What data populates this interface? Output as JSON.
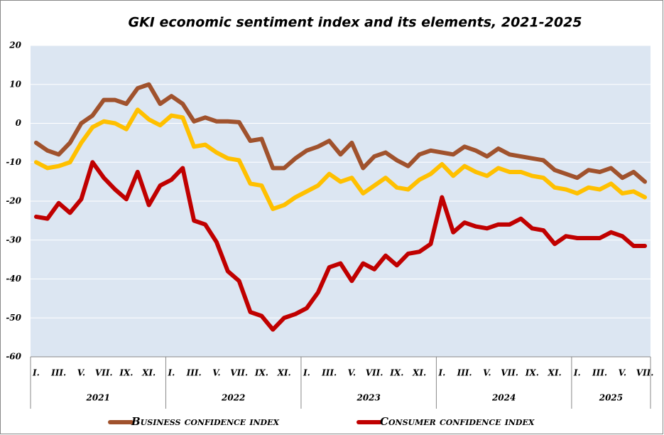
{
  "chart_data": {
    "type": "line",
    "title": "GKI economic sentiment index and its elements, 2021-2025",
    "categories": [
      "I.",
      null,
      "III.",
      null,
      "V.",
      null,
      "VII.",
      null,
      "IX.",
      null,
      "XI.",
      null,
      "I.",
      null,
      "III.",
      null,
      "V.",
      null,
      "VII.",
      null,
      "IX.",
      null,
      "XI.",
      null,
      "I.",
      null,
      "III.",
      null,
      "V.",
      null,
      "VII.",
      null,
      "IX.",
      null,
      "XI.",
      null,
      "I.",
      null,
      "III.",
      null,
      "V.",
      null,
      "VII.",
      null,
      "IX.",
      null,
      "XI.",
      null,
      "I.",
      null,
      "III.",
      null,
      "V.",
      null,
      "VII."
    ],
    "years": [
      "2021",
      "2022",
      "2023",
      "2024",
      "2025"
    ],
    "series": [
      {
        "name": "Business confidence index",
        "color": "#a0522d",
        "values": [
          -5,
          -7,
          -8,
          -5,
          0,
          2,
          6,
          6,
          5,
          9,
          10,
          5,
          7,
          5,
          0.5,
          1.5,
          0.5,
          0.5,
          0.3,
          -4.5,
          -4,
          -11.5,
          -11.5,
          -9,
          -7,
          -6,
          -4.5,
          -8,
          -5,
          -11.5,
          -8.5,
          -7.5,
          -9.5,
          -11,
          -8,
          -7,
          -7.5,
          -8,
          -6,
          -7,
          -8.5,
          -6.5,
          -8,
          -8.5,
          -9,
          -9.5,
          -12,
          -13,
          -14,
          -12,
          -12.5,
          -11.5,
          -14,
          -12.5,
          -15
        ]
      },
      {
        "color": "#ffc000",
        "values": [
          -10,
          -11.5,
          -11,
          -10,
          -5,
          -1,
          0.5,
          0,
          -1.5,
          3.5,
          1,
          -0.5,
          2,
          1.5,
          -6,
          -5.5,
          -7.5,
          -9,
          -9.5,
          -15.5,
          -16,
          -22,
          -21,
          -19,
          -17.5,
          -16,
          -13,
          -15,
          -14,
          -18,
          -16,
          -14,
          -16.5,
          -17,
          -14.5,
          -13,
          -10.5,
          -13.5,
          -11,
          -12.5,
          -13.5,
          -11.5,
          -12.5,
          -12.5,
          -13.5,
          -14,
          -16.5,
          -17,
          -18,
          -16.5,
          -17,
          -15.5,
          -18,
          -17.5,
          -19
        ]
      },
      {
        "name": "Consumer confidence index",
        "color": "#c00000",
        "values": [
          -24,
          -24.5,
          -20.5,
          -23,
          -19.5,
          -10,
          -14,
          -17,
          -19.5,
          -12.5,
          -21,
          -16,
          -14.5,
          -11.5,
          -25,
          -26,
          -30.5,
          -38,
          -40.5,
          -48.5,
          -49.5,
          -53,
          -50,
          -49,
          -47.5,
          -43.5,
          -37,
          -36,
          -40.5,
          -36,
          -37.5,
          -34,
          -36.5,
          -33.5,
          -33,
          -31,
          -19,
          -28,
          -25.5,
          -26.5,
          -27,
          -26,
          -26,
          -24.5,
          -27,
          -27.5,
          -31,
          -29,
          -29.5,
          -29.5,
          -29.5,
          -28,
          -29,
          -31.5,
          -31.5
        ]
      }
    ],
    "ylim": [
      -60,
      20
    ],
    "yticks": [
      -60,
      -50,
      -40,
      -30,
      -20,
      -10,
      0,
      10,
      20
    ],
    "grid": true
  }
}
